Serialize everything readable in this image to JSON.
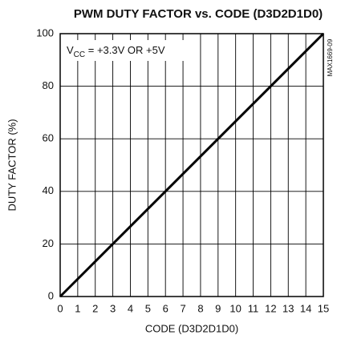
{
  "chart_data": {
    "type": "line",
    "title": "PWM DUTY FACTOR vs. CODE (D3D2D1D0)",
    "xlabel": "CODE (D3D2D1D0)",
    "ylabel": "DUTY FACTOR (%)",
    "annotation": {
      "main": "V",
      "sub": "CC",
      "rest": " = +3.3V OR +5V"
    },
    "figure_id": "MAX1669-09",
    "x": [
      0,
      15
    ],
    "series": [
      {
        "name": "DUTY FACTOR",
        "color": "#000000",
        "values": [
          0,
          100
        ]
      }
    ],
    "xlim": [
      0,
      15
    ],
    "xticks": [
      0,
      1,
      2,
      3,
      4,
      5,
      6,
      7,
      8,
      9,
      10,
      11,
      12,
      13,
      14,
      15
    ],
    "ylim": [
      0,
      100
    ],
    "yticks": [
      0,
      20,
      40,
      60,
      80,
      100
    ],
    "grid": true
  }
}
